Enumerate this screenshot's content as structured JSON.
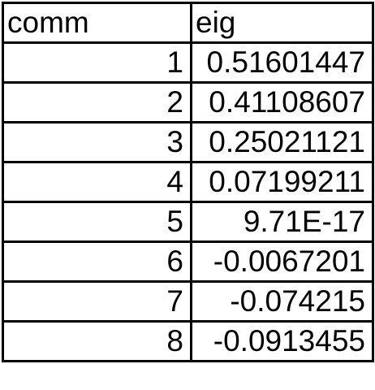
{
  "table": {
    "headers": [
      "comm",
      "eig"
    ],
    "rows": [
      {
        "comm": "1",
        "eig": "0.51601447"
      },
      {
        "comm": "2",
        "eig": "0.41108607"
      },
      {
        "comm": "3",
        "eig": "0.25021121"
      },
      {
        "comm": "4",
        "eig": "0.07199211"
      },
      {
        "comm": "5",
        "eig": "9.71E-17"
      },
      {
        "comm": "6",
        "eig": "-0.0067201"
      },
      {
        "comm": "7",
        "eig": "-0.074215"
      },
      {
        "comm": "8",
        "eig": "-0.0913455"
      }
    ]
  }
}
